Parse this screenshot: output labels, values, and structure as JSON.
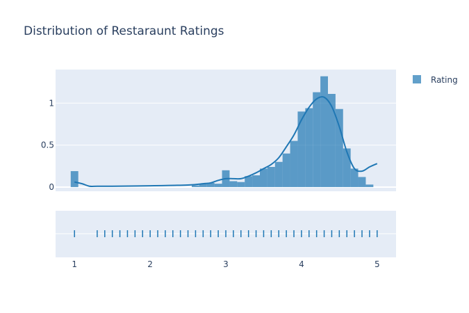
{
  "chart_data": {
    "type": "histogram",
    "title": "Distribution of Restaraunt Ratings",
    "legend": {
      "position": "top-right",
      "entries": [
        "Rating"
      ]
    },
    "series": [
      {
        "name": "Rating",
        "color": "#1f77b4",
        "opacity": 0.7
      }
    ],
    "x_axis": {
      "range": [
        0.75,
        5.25
      ],
      "ticks": [
        1,
        2,
        3,
        4,
        5
      ],
      "tick_labels": [
        "1",
        "2",
        "3",
        "4",
        "5"
      ]
    },
    "y_axis": {
      "range": [
        -0.05,
        1.4
      ],
      "ticks": [
        0,
        0.5,
        1
      ],
      "tick_labels": [
        "0",
        "0.5",
        "1"
      ],
      "grid": true
    },
    "bin_width": 0.1,
    "bins": [
      {
        "x": 1.0,
        "density": 0.19
      },
      {
        "x": 2.6,
        "density": 0.02
      },
      {
        "x": 2.7,
        "density": 0.04
      },
      {
        "x": 2.8,
        "density": 0.05
      },
      {
        "x": 2.9,
        "density": 0.04
      },
      {
        "x": 3.0,
        "density": 0.2
      },
      {
        "x": 3.1,
        "density": 0.07
      },
      {
        "x": 3.2,
        "density": 0.06
      },
      {
        "x": 3.3,
        "density": 0.13
      },
      {
        "x": 3.4,
        "density": 0.14
      },
      {
        "x": 3.5,
        "density": 0.22
      },
      {
        "x": 3.6,
        "density": 0.24
      },
      {
        "x": 3.7,
        "density": 0.3
      },
      {
        "x": 3.8,
        "density": 0.4
      },
      {
        "x": 3.9,
        "density": 0.55
      },
      {
        "x": 4.0,
        "density": 0.9
      },
      {
        "x": 4.1,
        "density": 0.94
      },
      {
        "x": 4.2,
        "density": 1.13
      },
      {
        "x": 4.3,
        "density": 1.32
      },
      {
        "x": 4.4,
        "density": 1.11
      },
      {
        "x": 4.5,
        "density": 0.93
      },
      {
        "x": 4.6,
        "density": 0.46
      },
      {
        "x": 4.7,
        "density": 0.22
      },
      {
        "x": 4.8,
        "density": 0.12
      },
      {
        "x": 4.9,
        "density": 0.03
      }
    ],
    "kde_curve": [
      [
        1.0,
        0.06
      ],
      [
        1.1,
        0.04
      ],
      [
        1.2,
        0.01
      ],
      [
        1.3,
        0.01
      ],
      [
        1.5,
        0.01
      ],
      [
        2.0,
        0.015
      ],
      [
        2.5,
        0.025
      ],
      [
        2.7,
        0.04
      ],
      [
        2.8,
        0.05
      ],
      [
        2.9,
        0.08
      ],
      [
        3.0,
        0.1
      ],
      [
        3.1,
        0.1
      ],
      [
        3.2,
        0.1
      ],
      [
        3.3,
        0.13
      ],
      [
        3.4,
        0.17
      ],
      [
        3.5,
        0.22
      ],
      [
        3.6,
        0.27
      ],
      [
        3.7,
        0.35
      ],
      [
        3.8,
        0.48
      ],
      [
        3.9,
        0.62
      ],
      [
        4.0,
        0.8
      ],
      [
        4.1,
        0.95
      ],
      [
        4.2,
        1.05
      ],
      [
        4.3,
        1.07
      ],
      [
        4.4,
        0.96
      ],
      [
        4.5,
        0.72
      ],
      [
        4.6,
        0.42
      ],
      [
        4.7,
        0.22
      ],
      [
        4.8,
        0.19
      ],
      [
        4.9,
        0.24
      ],
      [
        5.0,
        0.28
      ]
    ],
    "rug_values": [
      1.0,
      1.3,
      1.4,
      1.5,
      1.6,
      1.7,
      1.8,
      1.9,
      2.0,
      2.1,
      2.2,
      2.3,
      2.4,
      2.5,
      2.6,
      2.7,
      2.8,
      2.9,
      3.0,
      3.1,
      3.2,
      3.3,
      3.4,
      3.5,
      3.6,
      3.7,
      3.8,
      3.9,
      4.0,
      4.1,
      4.2,
      4.3,
      4.4,
      4.5,
      4.6,
      4.7,
      4.8,
      4.9,
      5.0
    ]
  }
}
